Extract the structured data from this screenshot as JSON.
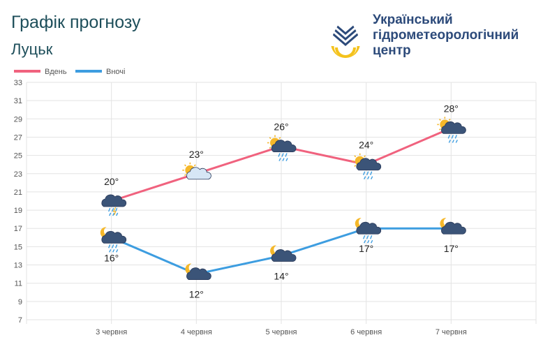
{
  "header": {
    "title": "Графік прогнозу",
    "city": "Луцьк",
    "org_line1": "Український",
    "org_line2": "гідрометеорологічний",
    "org_line3": "центр"
  },
  "colors": {
    "day": "#f0627e",
    "night": "#3d9de0",
    "grid": "#e3e3e3",
    "brand": "#2c4a7a"
  },
  "chart_data": {
    "type": "line",
    "categories": [
      "3 червня",
      "4 червня",
      "5 червня",
      "6 червня",
      "7 червня"
    ],
    "series": [
      {
        "name": "Вдень",
        "values": [
          20,
          23,
          26,
          24,
          28
        ],
        "labels": [
          "20°",
          "23°",
          "26°",
          "24°",
          "28°"
        ],
        "icons": [
          "thunderstorm-rain-icon",
          "sun-cloud-icon",
          "sun-cloud-rain-icon",
          "sun-cloud-rain-icon",
          "sun-cloud-rain-icon"
        ]
      },
      {
        "name": "Вночі",
        "values": [
          16,
          12,
          14,
          17,
          17
        ],
        "labels": [
          "16°",
          "12°",
          "14°",
          "17°",
          "17°"
        ],
        "icons": [
          "moon-cloud-rain-icon",
          "moon-cloud-icon",
          "moon-cloud-icon",
          "moon-cloud-rain-icon",
          "moon-cloud-icon"
        ]
      }
    ],
    "ylim": [
      7,
      33
    ],
    "yticks": [
      7,
      9,
      11,
      13,
      15,
      17,
      19,
      21,
      23,
      25,
      27,
      29,
      31,
      33
    ],
    "grid": true,
    "legend": "top-left"
  }
}
